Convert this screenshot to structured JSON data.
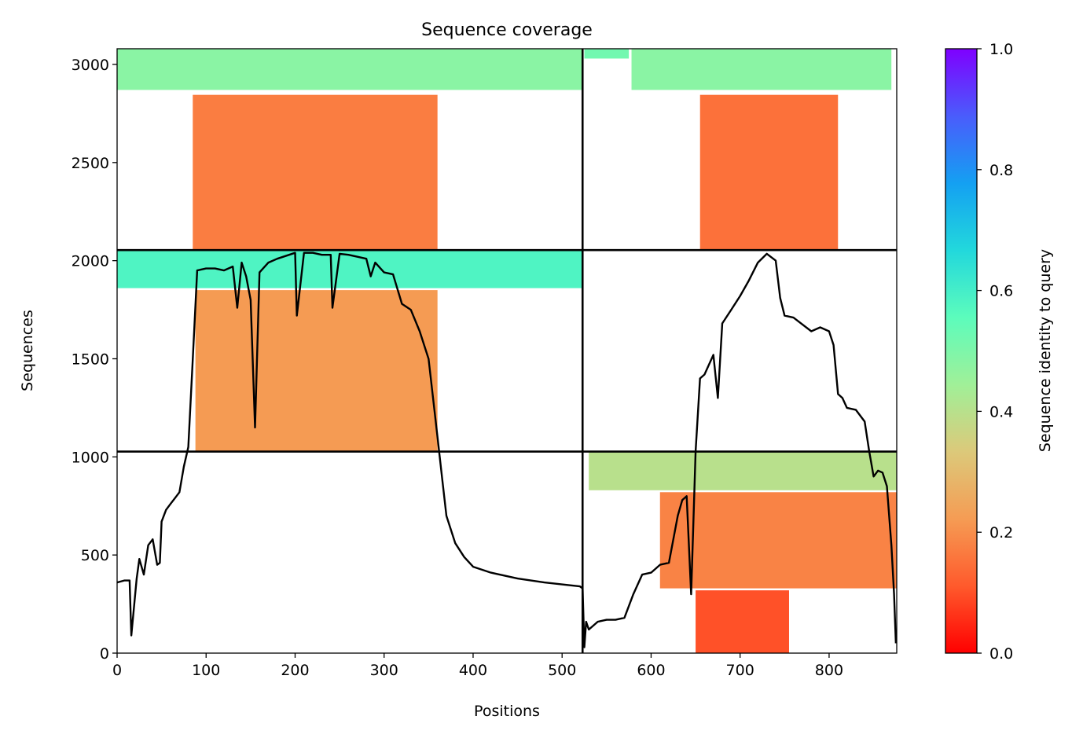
{
  "chart_data": [
    {
      "type": "heatmap",
      "title": "Sequence coverage",
      "xlabel": "Positions",
      "ylabel": "Sequences",
      "xlim": [
        0,
        876
      ],
      "ylim": [
        0,
        3080
      ],
      "x_ticks": [
        0,
        100,
        200,
        300,
        400,
        500,
        600,
        700,
        800
      ],
      "y_ticks": [
        0,
        500,
        1000,
        1500,
        2000,
        2500,
        3000
      ],
      "grid": false,
      "divider_lines": {
        "x": [
          523
        ],
        "y": [
          1027,
          2054
        ]
      },
      "coverage_blocks": [
        {
          "x": [
            0,
            523
          ],
          "y": [
            2054,
            3080
          ]
        },
        {
          "x": [
            523,
            876
          ],
          "y": [
            2054,
            3080
          ]
        },
        {
          "x": [
            0,
            523
          ],
          "y": [
            1027,
            2054
          ]
        },
        {
          "x": [
            523,
            876
          ],
          "y": [
            1027,
            2054
          ]
        },
        {
          "x": [
            0,
            523
          ],
          "y": [
            0,
            1027
          ]
        },
        {
          "x": [
            523,
            876
          ],
          "y": [
            0,
            1027
          ]
        }
      ],
      "coverage_bands": [
        {
          "x": [
            0,
            523
          ],
          "y": [
            2870,
            3080
          ],
          "identity": 0.48
        },
        {
          "x": [
            85,
            360
          ],
          "y": [
            2054,
            2845
          ],
          "identity": 0.17
        },
        {
          "x": [
            525,
            575
          ],
          "y": [
            3030,
            3080
          ],
          "identity": 0.52
        },
        {
          "x": [
            578,
            870
          ],
          "y": [
            2870,
            3080
          ],
          "identity": 0.48
        },
        {
          "x": [
            655,
            810
          ],
          "y": [
            2054,
            2845
          ],
          "identity": 0.15
        },
        {
          "x": [
            0,
            523
          ],
          "y": [
            1860,
            2054
          ],
          "identity": 0.58
        },
        {
          "x": [
            88,
            360
          ],
          "y": [
            1030,
            1850
          ],
          "identity": 0.22
        },
        {
          "x": [
            530,
            876
          ],
          "y": [
            830,
            1025
          ],
          "identity": 0.4
        },
        {
          "x": [
            610,
            876
          ],
          "y": [
            330,
            820
          ],
          "identity": 0.18
        },
        {
          "x": [
            650,
            755
          ],
          "y": [
            0,
            320
          ],
          "identity": 0.1
        }
      ],
      "coverage_line": {
        "x": [
          0,
          8,
          14,
          16,
          22,
          25,
          30,
          35,
          40,
          45,
          48,
          50,
          55,
          60,
          65,
          70,
          75,
          80,
          85,
          90,
          100,
          110,
          120,
          130,
          135,
          140,
          145,
          150,
          155,
          160,
          170,
          180,
          200,
          202,
          210,
          220,
          230,
          240,
          242,
          250,
          260,
          270,
          280,
          285,
          290,
          300,
          310,
          320,
          330,
          340,
          350,
          355,
          360,
          365,
          370,
          380,
          390,
          400,
          420,
          450,
          480,
          500,
          520,
          523,
          525,
          527,
          530,
          540,
          550,
          560,
          570,
          580,
          590,
          600,
          610,
          620,
          630,
          635,
          640,
          645,
          650,
          655,
          660,
          670,
          675,
          680,
          690,
          700,
          710,
          720,
          730,
          740,
          745,
          750,
          760,
          780,
          790,
          800,
          805,
          810,
          815,
          820,
          830,
          840,
          845,
          850,
          855,
          860,
          865,
          870,
          873,
          875
        ],
        "y": [
          360,
          370,
          370,
          90,
          380,
          480,
          400,
          550,
          580,
          450,
          460,
          670,
          730,
          760,
          790,
          820,
          950,
          1050,
          1500,
          1950,
          1960,
          1960,
          1950,
          1970,
          1760,
          1990,
          1920,
          1800,
          1150,
          1940,
          1990,
          2010,
          2040,
          1720,
          2040,
          2040,
          2030,
          2030,
          1760,
          2035,
          2030,
          2020,
          2010,
          1920,
          1990,
          1940,
          1930,
          1780,
          1750,
          1640,
          1500,
          1300,
          1100,
          900,
          700,
          560,
          490,
          440,
          410,
          380,
          360,
          350,
          340,
          330,
          30,
          160,
          120,
          160,
          170,
          170,
          180,
          300,
          400,
          410,
          450,
          460,
          700,
          780,
          800,
          300,
          1030,
          1400,
          1420,
          1520,
          1300,
          1680,
          1750,
          1820,
          1900,
          1990,
          2035,
          2000,
          1810,
          1720,
          1710,
          1640,
          1660,
          1640,
          1570,
          1320,
          1300,
          1250,
          1240,
          1180,
          1030,
          900,
          930,
          920,
          850,
          550,
          300,
          50
        ],
        "color": "#000000"
      },
      "colorbar": {
        "label": "Sequence identity to query",
        "ticks": [
          0.0,
          0.2,
          0.4,
          0.6,
          0.8,
          1.0
        ],
        "tick_labels": [
          "0.0",
          "0.2",
          "0.4",
          "0.6",
          "0.8",
          "1.0"
        ],
        "range": [
          0,
          1
        ],
        "colormap": "rainbow_r",
        "stops": [
          "#ff0000",
          "#ff5a2c",
          "#f59c54",
          "#dcc97a",
          "#a0f098",
          "#5cfcbc",
          "#22d8dc",
          "#14a0f2",
          "#4a5cfc",
          "#7f00ff"
        ]
      }
    }
  ]
}
